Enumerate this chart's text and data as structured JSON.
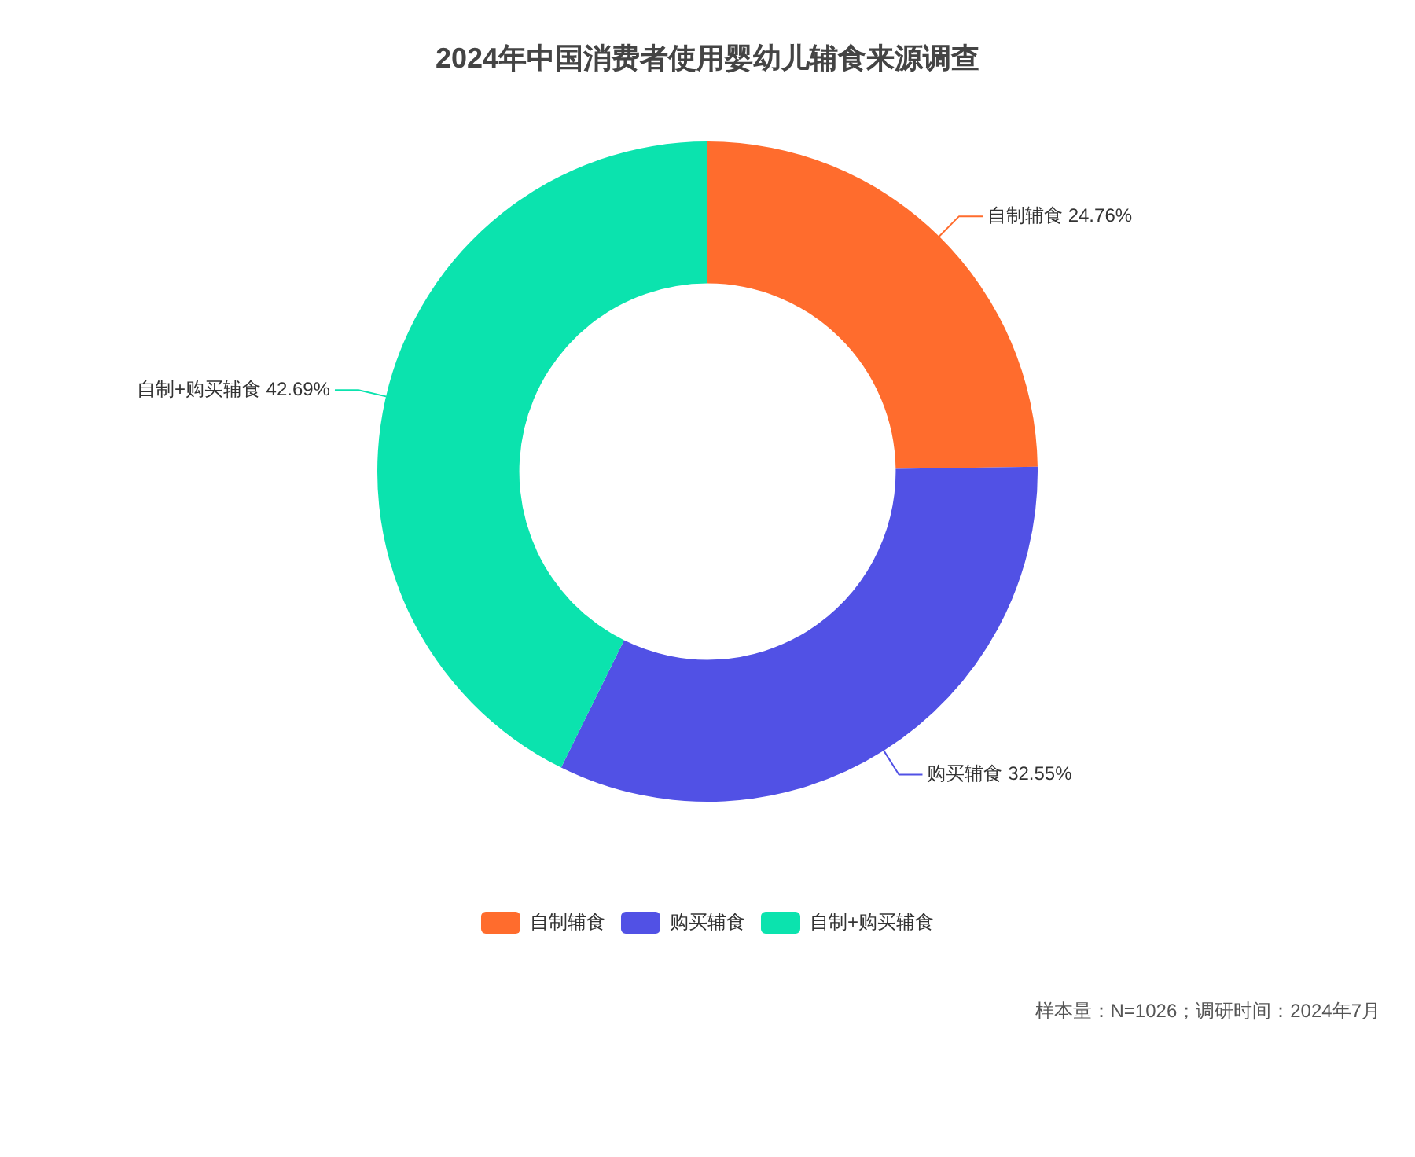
{
  "chart_data": {
    "type": "donut",
    "title": "2024年中国消费者使用婴幼儿辅食来源调查",
    "categories": [
      "自制辅食",
      "购买辅食",
      "自制+购买辅食"
    ],
    "values": [
      24.76,
      32.55,
      42.69
    ],
    "colors": [
      "#ff6c2d",
      "#5151e5",
      "#0be3ae"
    ],
    "value_labels": [
      "24.76%",
      "32.55%",
      "42.69%"
    ],
    "legend": "bottom",
    "annotations": [
      "样本量：N=1026；调研时间：2024年7月"
    ]
  }
}
